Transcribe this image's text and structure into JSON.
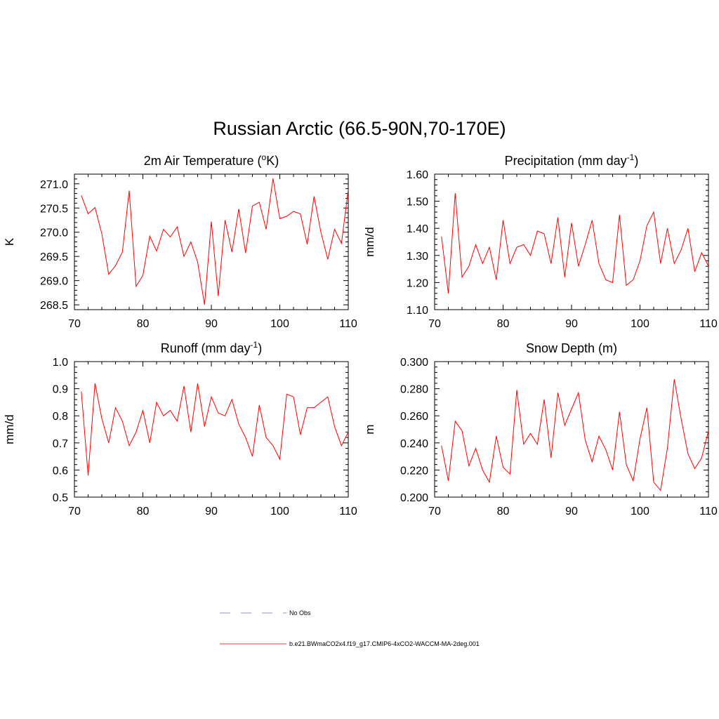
{
  "title": "Russian Arctic (66.5-90N,70-170E)",
  "legend": [
    {
      "label": "No Obs",
      "color": "#a8a8d8",
      "style": "dashed"
    },
    {
      "label": "b.e21.BWmaCO2x4.f19_g17.CMIP6-4xCO2-WACCM-MA-2deg.001",
      "color": "#ff3030",
      "style": "solid"
    }
  ],
  "chart_data": [
    {
      "type": "line",
      "title": "2m Air Temperature",
      "title_unit_prefix": "o",
      "title_unit": "K",
      "xlabel": "",
      "ylabel": "K",
      "xlim": [
        70,
        110
      ],
      "ylim": [
        268.4,
        271.2
      ],
      "xticks": [
        "70",
        "80",
        "90",
        "100",
        "110"
      ],
      "yticks": [
        "268.5",
        "269.0",
        "269.5",
        "270.0",
        "270.5",
        "271.0"
      ],
      "x": [
        71,
        72,
        73,
        74,
        75,
        76,
        77,
        78,
        79,
        80,
        81,
        82,
        83,
        84,
        85,
        86,
        87,
        88,
        89,
        90,
        91,
        92,
        93,
        94,
        95,
        96,
        97,
        98,
        99,
        100,
        101,
        102,
        103,
        104,
        105,
        106,
        107,
        108,
        109,
        110
      ],
      "series": [
        {
          "color": "#ff0000",
          "values": [
            270.76,
            270.38,
            270.51,
            269.97,
            269.13,
            269.31,
            269.59,
            270.86,
            268.88,
            269.11,
            269.92,
            269.61,
            270.06,
            269.9,
            270.11,
            269.5,
            269.8,
            269.38,
            268.5,
            270.22,
            268.68,
            270.25,
            269.59,
            270.48,
            269.57,
            270.54,
            270.62,
            270.06,
            271.11,
            270.28,
            270.33,
            270.43,
            270.38,
            269.75,
            270.74,
            270.0,
            269.44,
            270.06,
            269.77,
            270.88
          ]
        }
      ]
    },
    {
      "type": "line",
      "title": "Precipitation (mm day",
      "title_sup": "-1",
      "title_suffix": ")",
      "xlabel": "",
      "ylabel": "mm/d",
      "xlim": [
        70,
        110
      ],
      "ylim": [
        1.1,
        1.6
      ],
      "xticks": [
        "70",
        "80",
        "90",
        "100",
        "110"
      ],
      "yticks": [
        "1.10",
        "1.20",
        "1.30",
        "1.40",
        "1.50",
        "1.60"
      ],
      "x": [
        71,
        72,
        73,
        74,
        75,
        76,
        77,
        78,
        79,
        80,
        81,
        82,
        83,
        84,
        85,
        86,
        87,
        88,
        89,
        90,
        91,
        92,
        93,
        94,
        95,
        96,
        97,
        98,
        99,
        100,
        101,
        102,
        103,
        104,
        105,
        106,
        107,
        108,
        109,
        110
      ],
      "series": [
        {
          "color": "#ff0000",
          "values": [
            1.37,
            1.16,
            1.53,
            1.22,
            1.26,
            1.34,
            1.27,
            1.33,
            1.21,
            1.43,
            1.27,
            1.33,
            1.34,
            1.3,
            1.39,
            1.38,
            1.27,
            1.44,
            1.22,
            1.42,
            1.26,
            1.34,
            1.43,
            1.27,
            1.21,
            1.2,
            1.45,
            1.19,
            1.21,
            1.28,
            1.41,
            1.46,
            1.27,
            1.4,
            1.27,
            1.32,
            1.4,
            1.24,
            1.31,
            1.26
          ]
        }
      ]
    },
    {
      "type": "line",
      "title": "Runoff (mm day",
      "title_sup": "-1",
      "title_suffix": ")",
      "xlabel": "",
      "ylabel": "mm/d",
      "xlim": [
        70,
        110
      ],
      "ylim": [
        0.5,
        1.0
      ],
      "xticks": [
        "70",
        "80",
        "90",
        "100",
        "110"
      ],
      "yticks": [
        "0.5",
        "0.6",
        "0.7",
        "0.8",
        "0.9",
        "1.0"
      ],
      "x": [
        71,
        72,
        73,
        74,
        75,
        76,
        77,
        78,
        79,
        80,
        81,
        82,
        83,
        84,
        85,
        86,
        87,
        88,
        89,
        90,
        91,
        92,
        93,
        94,
        95,
        96,
        97,
        98,
        99,
        100,
        101,
        102,
        103,
        104,
        105,
        106,
        107,
        108,
        109,
        110
      ],
      "series": [
        {
          "color": "#ff0000",
          "values": [
            0.89,
            0.58,
            0.92,
            0.79,
            0.7,
            0.83,
            0.78,
            0.69,
            0.74,
            0.82,
            0.7,
            0.85,
            0.8,
            0.82,
            0.78,
            0.91,
            0.74,
            0.92,
            0.76,
            0.87,
            0.81,
            0.8,
            0.86,
            0.77,
            0.72,
            0.65,
            0.84,
            0.72,
            0.69,
            0.64,
            0.88,
            0.87,
            0.73,
            0.83,
            0.83,
            0.85,
            0.87,
            0.76,
            0.69,
            0.74
          ]
        }
      ]
    },
    {
      "type": "line",
      "title": "Snow Depth (m)",
      "xlabel": "",
      "ylabel": "m",
      "xlim": [
        70,
        110
      ],
      "ylim": [
        0.2,
        0.3
      ],
      "xticks": [
        "70",
        "80",
        "90",
        "100",
        "110"
      ],
      "yticks": [
        "0.200",
        "0.220",
        "0.240",
        "0.260",
        "0.280",
        "0.300"
      ],
      "x": [
        71,
        72,
        73,
        74,
        75,
        76,
        77,
        78,
        79,
        80,
        81,
        82,
        83,
        84,
        85,
        86,
        87,
        88,
        89,
        90,
        91,
        92,
        93,
        94,
        95,
        96,
        97,
        98,
        99,
        100,
        101,
        102,
        103,
        104,
        105,
        106,
        107,
        108,
        109,
        110
      ],
      "series": [
        {
          "color": "#ff0000",
          "values": [
            0.238,
            0.212,
            0.256,
            0.249,
            0.223,
            0.236,
            0.22,
            0.211,
            0.245,
            0.222,
            0.217,
            0.279,
            0.239,
            0.247,
            0.239,
            0.272,
            0.229,
            0.277,
            0.253,
            0.265,
            0.277,
            0.242,
            0.226,
            0.245,
            0.235,
            0.22,
            0.263,
            0.224,
            0.212,
            0.243,
            0.266,
            0.211,
            0.205,
            0.236,
            0.287,
            0.258,
            0.232,
            0.221,
            0.229,
            0.249
          ]
        }
      ]
    }
  ]
}
